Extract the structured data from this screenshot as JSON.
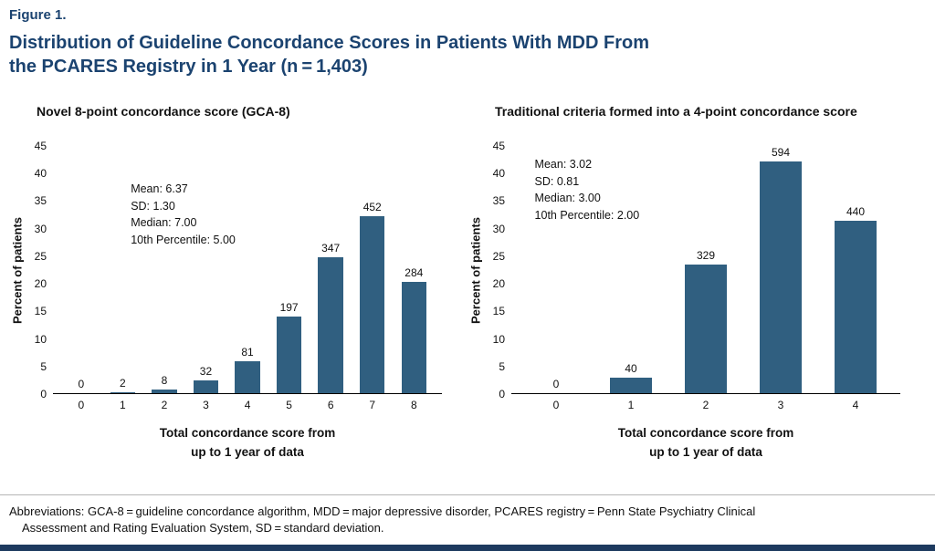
{
  "figure": {
    "label": "Figure 1.",
    "title_line1": "Distribution of Guideline Concordance Scores in Patients With MDD From",
    "title_line2": "the PCARES Registry in 1 Year (n = 1,403)"
  },
  "colors": {
    "bar": "#305f80",
    "title_navy": "#1b4370",
    "bottom_rule_navy": "#1d3a5f"
  },
  "chart_data": [
    {
      "type": "bar",
      "title": "Novel 8-point concordance score (GCA-8)",
      "categories": [
        "0",
        "1",
        "2",
        "3",
        "4",
        "5",
        "6",
        "7",
        "8"
      ],
      "counts": [
        0,
        2,
        8,
        32,
        81,
        197,
        347,
        452,
        284
      ],
      "values": [
        0,
        0.1,
        0.6,
        2.3,
        5.8,
        14.0,
        24.7,
        32.2,
        20.2
      ],
      "stats": [
        "Mean: 6.37",
        "SD: 1.30",
        "Median: 7.00",
        "10th Percentile: 5.00"
      ],
      "ylabel": "Percent of patients",
      "xlabel_lines": [
        "Total concordance score from",
        "up to 1 year of data"
      ],
      "ylim": [
        0,
        45
      ],
      "ytick_step": 5,
      "grid": false,
      "legend": "none"
    },
    {
      "type": "bar",
      "title": "Traditional criteria formed into a 4-point concordance score",
      "categories": [
        "0",
        "1",
        "2",
        "3",
        "4"
      ],
      "counts": [
        0,
        40,
        329,
        594,
        440
      ],
      "values": [
        0,
        2.9,
        23.4,
        42.3,
        31.4
      ],
      "stats": [
        "Mean: 3.02",
        "SD: 0.81",
        "Median: 3.00",
        "10th Percentile: 2.00"
      ],
      "ylabel": "Percent of patients",
      "xlabel_lines": [
        "Total concordance score from",
        "up to 1 year of data"
      ],
      "ylim": [
        0,
        45
      ],
      "ytick_step": 5,
      "grid": false,
      "legend": "none"
    }
  ],
  "footnote": {
    "line1": "Abbreviations: GCA-8 = guideline concordance algorithm, MDD = major depressive disorder, PCARES registry = Penn State Psychiatry Clinical",
    "line2": "Assessment and Rating Evaluation System, SD = standard deviation."
  }
}
